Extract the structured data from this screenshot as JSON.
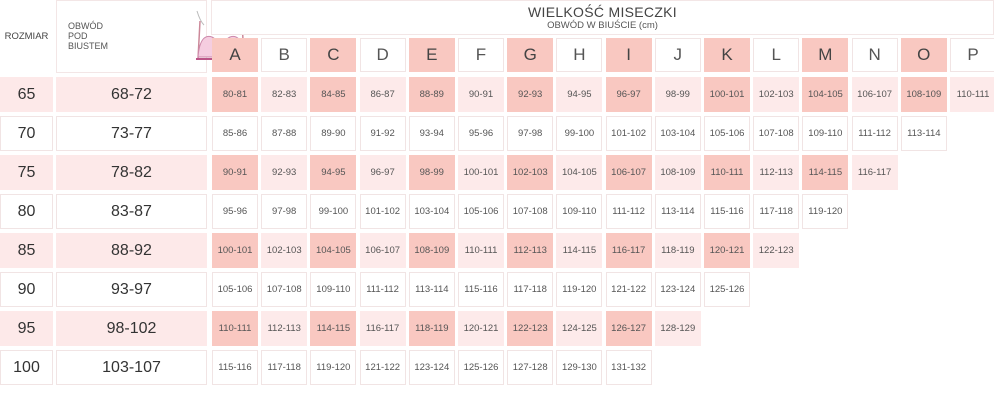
{
  "header": {
    "size_label": "ROZMIAR",
    "underbust_label": "OBWÓD POD BIUSTEM",
    "title": "WIELKOŚĆ MISECZKI",
    "subtitle": "OBWÓD W BIUŚCIE (cm)",
    "bra_icon": "bra-icon"
  },
  "colors": {
    "accent": "#f9c8c1",
    "light": "#fdeaea"
  },
  "cups": [
    "A",
    "B",
    "C",
    "D",
    "E",
    "F",
    "G",
    "H",
    "I",
    "J",
    "K",
    "L",
    "M",
    "N",
    "O",
    "P"
  ],
  "rows": [
    {
      "size": "65",
      "underbust": "68-72",
      "values": [
        "80-81",
        "82-83",
        "84-85",
        "86-87",
        "88-89",
        "90-91",
        "92-93",
        "94-95",
        "96-97",
        "98-99",
        "100-101",
        "102-103",
        "104-105",
        "106-107",
        "108-109",
        "110-111"
      ]
    },
    {
      "size": "70",
      "underbust": "73-77",
      "values": [
        "85-86",
        "87-88",
        "89-90",
        "91-92",
        "93-94",
        "95-96",
        "97-98",
        "99-100",
        "101-102",
        "103-104",
        "105-106",
        "107-108",
        "109-110",
        "111-112",
        "113-114"
      ]
    },
    {
      "size": "75",
      "underbust": "78-82",
      "values": [
        "90-91",
        "92-93",
        "94-95",
        "96-97",
        "98-99",
        "100-101",
        "102-103",
        "104-105",
        "106-107",
        "108-109",
        "110-111",
        "112-113",
        "114-115",
        "116-117"
      ]
    },
    {
      "size": "80",
      "underbust": "83-87",
      "values": [
        "95-96",
        "97-98",
        "99-100",
        "101-102",
        "103-104",
        "105-106",
        "107-108",
        "109-110",
        "111-112",
        "113-114",
        "115-116",
        "117-118",
        "119-120"
      ]
    },
    {
      "size": "85",
      "underbust": "88-92",
      "values": [
        "100-101",
        "102-103",
        "104-105",
        "106-107",
        "108-109",
        "110-111",
        "112-113",
        "114-115",
        "116-117",
        "118-119",
        "120-121",
        "122-123"
      ]
    },
    {
      "size": "90",
      "underbust": "93-97",
      "values": [
        "105-106",
        "107-108",
        "109-110",
        "111-112",
        "113-114",
        "115-116",
        "117-118",
        "119-120",
        "121-122",
        "123-124",
        "125-126"
      ]
    },
    {
      "size": "95",
      "underbust": "98-102",
      "values": [
        "110-111",
        "112-113",
        "114-115",
        "116-117",
        "118-119",
        "120-121",
        "122-123",
        "124-125",
        "126-127",
        "128-129"
      ]
    },
    {
      "size": "100",
      "underbust": "103-107",
      "values": [
        "115-116",
        "117-118",
        "119-120",
        "121-122",
        "123-124",
        "125-126",
        "127-128",
        "129-130",
        "131-132"
      ]
    }
  ]
}
